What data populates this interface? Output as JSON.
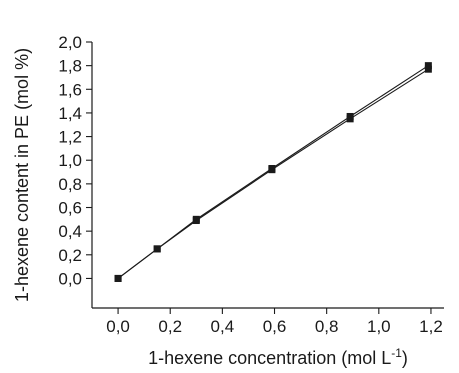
{
  "chart_data": {
    "type": "line",
    "xlabel": "1-hexene concentration (mol L",
    "xlabel_sup": "-1",
    "xlabel_end": ")",
    "ylabel": "1-hexene content in PE (mol %)",
    "xlim": [
      -0.1,
      1.25
    ],
    "ylim": [
      -0.25,
      2.0
    ],
    "x_ticks": [
      0.0,
      0.2,
      0.4,
      0.6,
      0.8,
      1.0,
      1.2
    ],
    "x_tick_labels": [
      "0,0",
      "0,2",
      "0,4",
      "0,6",
      "0,8",
      "1,0",
      "1,2"
    ],
    "y_ticks": [
      0.0,
      0.2,
      0.4,
      0.6,
      0.8,
      1.0,
      1.2,
      1.4,
      1.6,
      1.8,
      2.0
    ],
    "y_tick_labels": [
      "0,0",
      "0,2",
      "0,4",
      "0,6",
      "0,8",
      "1,0",
      "1,2",
      "1,4",
      "1,6",
      "1,8",
      "2,0"
    ],
    "grid": false,
    "series": [
      {
        "x": [
          0.0,
          0.15,
          0.3,
          0.59,
          0.89,
          1.19
        ],
        "y": [
          0.0,
          0.25,
          0.5,
          0.93,
          1.37,
          1.8
        ],
        "marker": "square"
      },
      {
        "x": [
          0.0,
          0.15,
          0.3,
          0.59,
          0.89,
          1.19
        ],
        "y": [
          0.0,
          0.25,
          0.49,
          0.92,
          1.35,
          1.77
        ],
        "marker": "square"
      }
    ]
  }
}
